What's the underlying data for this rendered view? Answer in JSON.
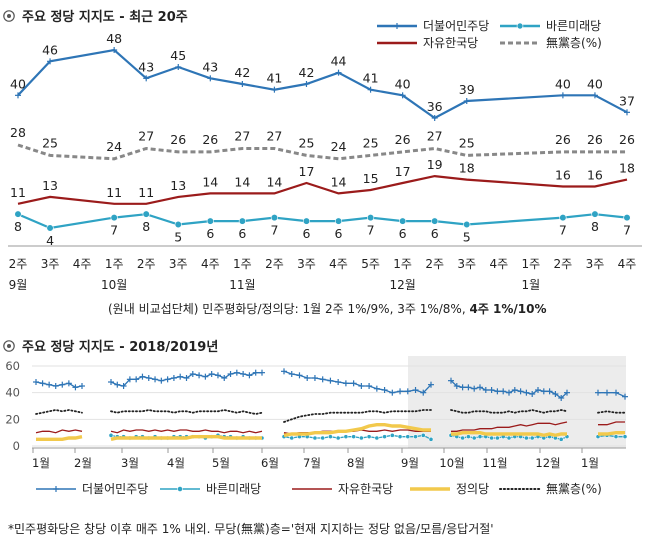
{
  "chart_data": [
    {
      "type": "line",
      "title": "주요 정당 지지도 - 최근 20주",
      "categories": [
        "2주",
        "3주",
        "4주",
        "1주",
        "2주",
        "3주",
        "4주",
        "1주",
        "2주",
        "3주",
        "4주",
        "5주",
        "1주",
        "2주",
        "3주",
        "4주",
        "1주",
        "2주",
        "3주",
        "4주"
      ],
      "month_labels": [
        {
          "index": 0,
          "label": "9월"
        },
        {
          "index": 3,
          "label": "10월"
        },
        {
          "index": 7,
          "label": "11월"
        },
        {
          "index": 12,
          "label": "12월"
        },
        {
          "index": 16,
          "label": "1월"
        }
      ],
      "series": [
        {
          "name": "더불어민주당",
          "color": "#2e75b6",
          "marker": "plus",
          "values": [
            40,
            46,
            null,
            48,
            43,
            45,
            43,
            42,
            41,
            42,
            44,
            41,
            40,
            36,
            39,
            null,
            null,
            40,
            40,
            37
          ]
        },
        {
          "name": "바른미래당",
          "color": "#2fa3c4",
          "marker": "circle",
          "values": [
            8,
            4,
            null,
            7,
            8,
            5,
            6,
            6,
            7,
            6,
            6,
            7,
            6,
            6,
            5,
            null,
            null,
            7,
            8,
            7
          ]
        },
        {
          "name": "자유한국당",
          "color": "#9b1b1b",
          "marker": "none",
          "values": [
            11,
            13,
            null,
            11,
            11,
            13,
            14,
            14,
            14,
            17,
            14,
            15,
            17,
            19,
            18,
            null,
            null,
            16,
            16,
            18
          ]
        },
        {
          "name": "無黨층(%)",
          "color": "#888888",
          "marker": "dash",
          "values": [
            28,
            25,
            null,
            24,
            27,
            26,
            26,
            27,
            27,
            25,
            24,
            25,
            26,
            27,
            25,
            null,
            null,
            26,
            26,
            26
          ]
        }
      ],
      "note_prefix": "(원내 비교섭단체) 민주평화당/정의당: 1월 2주 1%/9%, 3주 1%/8%, ",
      "note_bold": "4주 1%/10%"
    },
    {
      "type": "line",
      "title": "주요 정당 지지도 - 2018/2019년",
      "ylim": [
        0,
        60
      ],
      "yticks": [
        0,
        20,
        40,
        60
      ],
      "month_labels": [
        "1월",
        "2월",
        "3월",
        "4월",
        "5월",
        "6월",
        "7월",
        "8월",
        "9월",
        "10월",
        "11월",
        "12월",
        "1월"
      ],
      "series": [
        {
          "name": "더불어민주당",
          "color": "#2e75b6",
          "marker": "plus",
          "segments": [
            [
              48,
              47,
              46,
              45,
              46,
              47,
              44,
              45
            ],
            [
              48,
              46,
              45,
              50,
              50,
              52,
              51,
              50,
              49,
              50,
              51,
              52,
              51,
              54,
              53,
              52,
              54,
              53,
              51,
              54,
              55,
              54,
              53,
              55,
              55
            ],
            [
              56,
              54,
              53,
              51,
              51,
              50,
              49,
              48,
              47,
              47,
              45,
              45,
              43,
              42,
              40,
              41,
              41,
              42,
              40,
              46
            ],
            [
              49,
              45,
              44,
              44,
              43,
              44,
              42,
              42,
              41,
              41,
              40,
              42,
              41,
              40,
              39,
              42,
              41,
              41,
              39,
              36,
              40
            ],
            [
              40,
              40,
              40,
              37
            ]
          ]
        },
        {
          "name": "바른미래당",
          "color": "#2fa3c4",
          "marker": "circle",
          "segments": [
            [],
            [
              8,
              7,
              7,
              6,
              7,
              7,
              6,
              7,
              6,
              6,
              7,
              7,
              7,
              7,
              7,
              6,
              7,
              8,
              7,
              7,
              6,
              7,
              6,
              6,
              6
            ],
            [
              7,
              6,
              7,
              7,
              6,
              6,
              7,
              6,
              7,
              7,
              6,
              7,
              6,
              7,
              8,
              7,
              7,
              7,
              8,
              5
            ],
            [
              8,
              7,
              6,
              7,
              6,
              7,
              7,
              6,
              6,
              7,
              6,
              7,
              7,
              6,
              6,
              7,
              6,
              7,
              6,
              5,
              7
            ],
            [
              7,
              8,
              7,
              7
            ]
          ]
        },
        {
          "name": "자유한국당",
          "color": "#9b1b1b",
          "marker": "none",
          "segments": [
            [
              10,
              11,
              11,
              10,
              12,
              11,
              12,
              11
            ],
            [
              11,
              10,
              12,
              11,
              12,
              12,
              11,
              12,
              11,
              12,
              11,
              12,
              12,
              11,
              11,
              12,
              11,
              11,
              10,
              11,
              11,
              10,
              11,
              10,
              11
            ],
            [
              10,
              9,
              10,
              10,
              10,
              11,
              11,
              11,
              11,
              11,
              12,
              11,
              11,
              12,
              11,
              12,
              12,
              11,
              11,
              11
            ],
            [
              11,
              11,
              12,
              12,
              12,
              13,
              13,
              13,
              14,
              14,
              14,
              15,
              16,
              15,
              16,
              17,
              17,
              17,
              16,
              17,
              18
            ],
            [
              16,
              16,
              18,
              18
            ]
          ]
        },
        {
          "name": "정의당",
          "color": "#f2c94c",
          "marker": "none",
          "segments": [
            [
              5,
              5,
              5,
              5,
              5,
              6,
              6,
              7
            ],
            [
              5,
              6,
              6,
              6,
              6,
              6,
              6,
              6,
              6,
              6,
              6,
              6,
              6,
              7,
              7,
              7,
              7,
              7,
              6,
              6,
              6,
              6,
              6,
              6,
              6
            ],
            [
              8,
              9,
              9,
              9,
              10,
              10,
              10,
              11,
              11,
              12,
              13,
              15,
              16,
              16,
              15,
              15,
              14,
              13,
              12,
              12
            ],
            [
              9,
              9,
              10,
              10,
              10,
              10,
              9,
              9,
              9,
              9,
              9,
              9,
              9,
              9,
              9,
              9,
              8,
              9,
              8,
              9,
              9
            ],
            [
              9,
              9,
              10,
              10
            ]
          ]
        },
        {
          "name": "無黨층(%)",
          "color": "#222222",
          "marker": "dots",
          "segments": [
            [
              24,
              25,
              26,
              27,
              26,
              27,
              26,
              25
            ],
            [
              26,
              25,
              26,
              26,
              26,
              26,
              27,
              26,
              26,
              26,
              25,
              26,
              26,
              25,
              26,
              26,
              26,
              26,
              27,
              26,
              25,
              26,
              25,
              24,
              25
            ],
            [
              18,
              20,
              22,
              23,
              24,
              24,
              25,
              25,
              25,
              25,
              25,
              26,
              26,
              25,
              26,
              26,
              26,
              26,
              27,
              27
            ],
            [
              27,
              26,
              25,
              25,
              26,
              26,
              26,
              25,
              25,
              25,
              26,
              25,
              26,
              26,
              27,
              26,
              25,
              26,
              26,
              27,
              26
            ],
            [
              25,
              26,
              25,
              25
            ]
          ]
        }
      ],
      "footnote": "*민주평화당은 창당 이후 매주 1% 내외. 무당(無黨)층='현재 지지하는 정당 없음/모름/응답거절'"
    }
  ]
}
